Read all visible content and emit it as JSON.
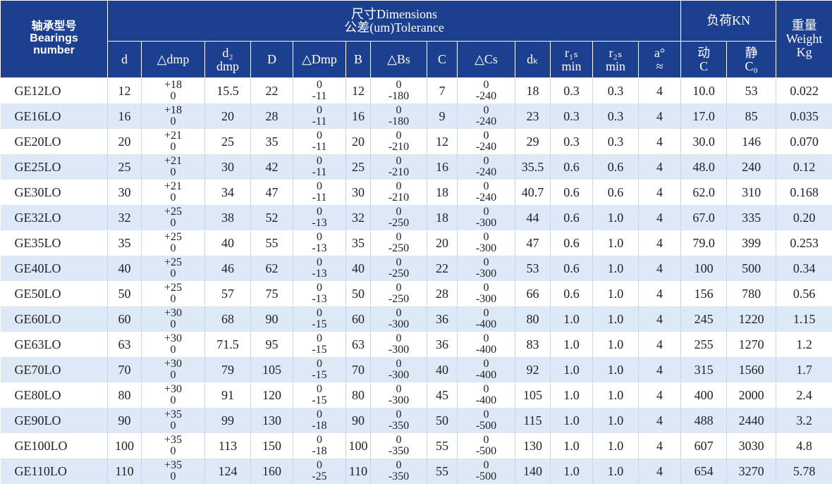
{
  "header": {
    "bearing": [
      "轴承型号",
      "Bearings",
      "number"
    ],
    "dimensions": [
      "尺寸Dimensions",
      "公差(um)Tolerance"
    ],
    "load": "负荷KN",
    "weight": [
      "重量",
      "Weight",
      "Kg"
    ],
    "columns": [
      [
        "d"
      ],
      [
        "△dmp"
      ],
      [
        "d₂",
        "dmp"
      ],
      [
        "D"
      ],
      [
        "△Dmp"
      ],
      [
        "B"
      ],
      [
        "△Bs"
      ],
      [
        "C"
      ],
      [
        "△Cs"
      ],
      [
        "dₖ"
      ],
      [
        "r₁ₛ",
        "min"
      ],
      [
        "r₂ₛ",
        "min"
      ],
      [
        "a°",
        "≈"
      ],
      [
        "动",
        "C"
      ],
      [
        "静",
        "C₀"
      ]
    ]
  },
  "table": {
    "rows": [
      [
        "GE12LO",
        "12",
        [
          "+18",
          "0"
        ],
        "15.5",
        "22",
        [
          "0",
          "-11"
        ],
        "12",
        [
          "0",
          "-180"
        ],
        "7",
        [
          "0",
          "-240"
        ],
        "18",
        "0.3",
        "0.3",
        "4",
        "10.0",
        "53",
        "0.022"
      ],
      [
        "GE16LO",
        "16",
        [
          "+18",
          "0"
        ],
        "20",
        "28",
        [
          "0",
          "-11"
        ],
        "16",
        [
          "0",
          "-180"
        ],
        "9",
        [
          "0",
          "-240"
        ],
        "23",
        "0.3",
        "0.3",
        "4",
        "17.0",
        "85",
        "0.035"
      ],
      [
        "GE20LO",
        "20",
        [
          "+21",
          "0"
        ],
        "25",
        "35",
        [
          "0",
          "-11"
        ],
        "20",
        [
          "0",
          "-210"
        ],
        "12",
        [
          "0",
          "-240"
        ],
        "29",
        "0.3",
        "0.3",
        "4",
        "30.0",
        "146",
        "0.070"
      ],
      [
        "GE25LO",
        "25",
        [
          "+21",
          "0"
        ],
        "30",
        "42",
        [
          "0",
          "-11"
        ],
        "25",
        [
          "0",
          "-210"
        ],
        "16",
        [
          "0",
          "-240"
        ],
        "35.5",
        "0.6",
        "0.6",
        "4",
        "48.0",
        "240",
        "0.12"
      ],
      [
        "GE30LO",
        "30",
        [
          "+21",
          "0"
        ],
        "34",
        "47",
        [
          "0",
          "-11"
        ],
        "30",
        [
          "0",
          "-210"
        ],
        "18",
        [
          "0",
          "-240"
        ],
        "40.7",
        "0.6",
        "0.6",
        "4",
        "62.0",
        "310",
        "0.168"
      ],
      [
        "GE32LO",
        "32",
        [
          "+25",
          "0"
        ],
        "38",
        "52",
        [
          "0",
          "-13"
        ],
        "32",
        [
          "0",
          "-250"
        ],
        "18",
        [
          "0",
          "-300"
        ],
        "44",
        "0.6",
        "1.0",
        "4",
        "67.0",
        "335",
        "0.20"
      ],
      [
        "GE35LO",
        "35",
        [
          "+25",
          "0"
        ],
        "40",
        "55",
        [
          "0",
          "-13"
        ],
        "35",
        [
          "0",
          "-250"
        ],
        "20",
        [
          "0",
          "-300"
        ],
        "47",
        "0.6",
        "1.0",
        "4",
        "79.0",
        "399",
        "0.253"
      ],
      [
        "GE40LO",
        "40",
        [
          "+25",
          "0"
        ],
        "46",
        "62",
        [
          "0",
          "-13"
        ],
        "40",
        [
          "0",
          "-250"
        ],
        "22",
        [
          "0",
          "-300"
        ],
        "53",
        "0.6",
        "1.0",
        "4",
        "100",
        "500",
        "0.34"
      ],
      [
        "GE50LO",
        "50",
        [
          "+25",
          "0"
        ],
        "57",
        "75",
        [
          "0",
          "-13"
        ],
        "50",
        [
          "0",
          "-250"
        ],
        "28",
        [
          "0",
          "-300"
        ],
        "66",
        "0.6",
        "1.0",
        "4",
        "156",
        "780",
        "0.56"
      ],
      [
        "GE60LO",
        "60",
        [
          "+30",
          "0"
        ],
        "68",
        "90",
        [
          "0",
          "-15"
        ],
        "60",
        [
          "0",
          "-300"
        ],
        "36",
        [
          "0",
          "-400"
        ],
        "80",
        "1.0",
        "1.0",
        "4",
        "245",
        "1220",
        "1.15"
      ],
      [
        "GE63LO",
        "63",
        [
          "+30",
          "0"
        ],
        "71.5",
        "95",
        [
          "0",
          "-15"
        ],
        "63",
        [
          "0",
          "-300"
        ],
        "36",
        [
          "0",
          "-400"
        ],
        "83",
        "1.0",
        "1.0",
        "4",
        "255",
        "1270",
        "1.2"
      ],
      [
        "GE70LO",
        "70",
        [
          "+30",
          "0"
        ],
        "79",
        "105",
        [
          "0",
          "-15"
        ],
        "70",
        [
          "0",
          "-300"
        ],
        "40",
        [
          "0",
          "-400"
        ],
        "92",
        "1.0",
        "1.0",
        "4",
        "315",
        "1560",
        "1.7"
      ],
      [
        "GE80LO",
        "80",
        [
          "+30",
          "0"
        ],
        "91",
        "120",
        [
          "0",
          "-15"
        ],
        "80",
        [
          "0",
          "-300"
        ],
        "45",
        [
          "0",
          "-400"
        ],
        "105",
        "1.0",
        "1.0",
        "4",
        "400",
        "2000",
        "2.4"
      ],
      [
        "GE90LO",
        "90",
        [
          "+35",
          "0"
        ],
        "99",
        "130",
        [
          "0",
          "-18"
        ],
        "90",
        [
          "0",
          "-350"
        ],
        "50",
        [
          "0",
          "-500"
        ],
        "115",
        "1.0",
        "1.0",
        "4",
        "488",
        "2440",
        "3.2"
      ],
      [
        "GE100LO",
        "100",
        [
          "+35",
          "0"
        ],
        "113",
        "150",
        [
          "0",
          "-18"
        ],
        "100",
        [
          "0",
          "-350"
        ],
        "55",
        [
          "0",
          "-500"
        ],
        "130",
        "1.0",
        "1.0",
        "4",
        "607",
        "3030",
        "4.8"
      ],
      [
        "GE110LO",
        "110",
        [
          "+35",
          "0"
        ],
        "124",
        "160",
        [
          "0",
          "-25"
        ],
        "110",
        [
          "0",
          "-350"
        ],
        "55",
        [
          "0",
          "-500"
        ],
        "140",
        "1.0",
        "1.0",
        "4",
        "654",
        "3270",
        "5.78"
      ]
    ]
  }
}
